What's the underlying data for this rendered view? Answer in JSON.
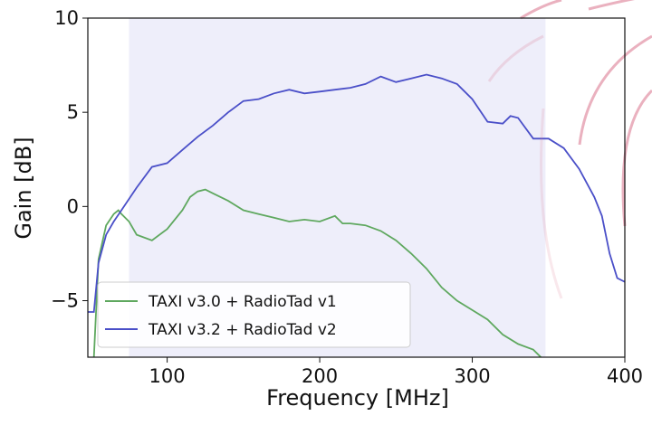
{
  "chart_data": {
    "type": "line",
    "xlabel": "Frequency [MHz]",
    "ylabel": "Gain [dB]",
    "xlim": [
      48,
      400
    ],
    "xticks": [
      100,
      200,
      300,
      400
    ],
    "ylim": [
      -8,
      10
    ],
    "yticks": [
      {
        "value": -5,
        "label": "−5"
      },
      0,
      5,
      10
    ],
    "span": [
      75,
      348
    ],
    "span_color": "#eeeefa",
    "legend": "lower left",
    "series": [
      {
        "name": "TAXI v3.0 + RadioTad v1",
        "color": "#5fa85f",
        "x": [
          52,
          55,
          60,
          65,
          68,
          70,
          75,
          80,
          90,
          100,
          110,
          115,
          120,
          125,
          130,
          140,
          150,
          160,
          170,
          180,
          190,
          200,
          210,
          215,
          220,
          230,
          240,
          250,
          260,
          270,
          280,
          290,
          300,
          310,
          320,
          330,
          340,
          345
        ],
        "values": [
          -8,
          -2.8,
          -1.0,
          -0.4,
          -0.2,
          -0.4,
          -0.8,
          -1.5,
          -1.8,
          -1.2,
          -0.2,
          0.5,
          0.8,
          0.9,
          0.7,
          0.3,
          -0.2,
          -0.4,
          -0.6,
          -0.8,
          -0.7,
          -0.8,
          -0.5,
          -0.9,
          -0.9,
          -1.0,
          -1.3,
          -1.8,
          -2.5,
          -3.3,
          -4.3,
          -5.0,
          -5.5,
          -6.0,
          -6.8,
          -7.3,
          -7.6,
          -8
        ]
      },
      {
        "name": "TAXI v3.2 + RadioTad v2",
        "color": "#4a4fc8",
        "x": [
          48,
          52,
          55,
          60,
          65,
          70,
          75,
          80,
          90,
          100,
          110,
          120,
          130,
          140,
          150,
          160,
          170,
          180,
          190,
          200,
          210,
          220,
          230,
          240,
          250,
          260,
          270,
          280,
          290,
          300,
          310,
          320,
          325,
          330,
          340,
          350,
          360,
          370,
          380,
          385,
          390,
          395,
          400
        ],
        "values": [
          -5.6,
          -5.6,
          -3,
          -1.5,
          -0.8,
          -0.2,
          0.4,
          1.0,
          2.1,
          2.3,
          3.0,
          3.7,
          4.3,
          5.0,
          5.6,
          5.7,
          6.0,
          6.2,
          6.0,
          6.1,
          6.2,
          6.3,
          6.5,
          6.9,
          6.6,
          6.8,
          7.0,
          6.8,
          6.5,
          5.7,
          4.5,
          4.4,
          4.8,
          4.7,
          3.6,
          3.6,
          3.1,
          2.0,
          0.5,
          -0.5,
          -2.5,
          -3.8,
          -4.0
        ]
      }
    ]
  }
}
